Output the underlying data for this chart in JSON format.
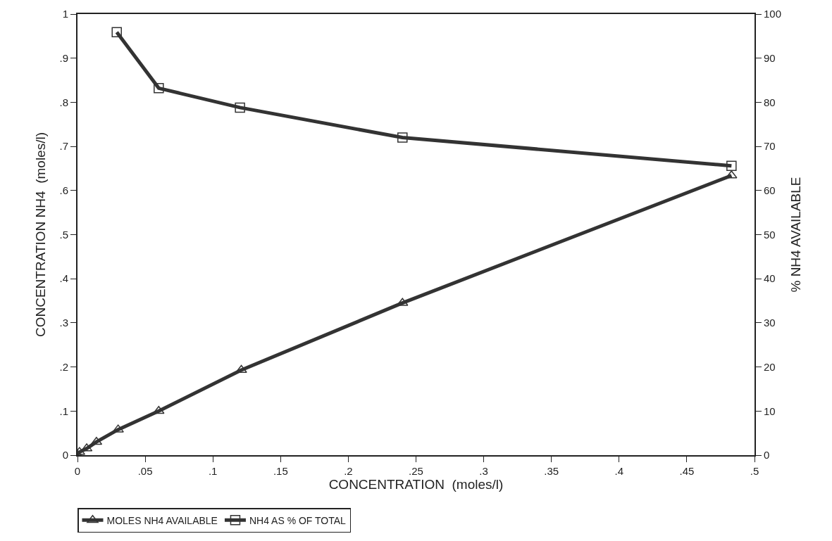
{
  "chart_data": {
    "type": "line",
    "xlabel": "CONCENTRATION  (moles/l)",
    "ylabel": "CONCENTRATION NH4  (moles/l)",
    "y2label": "% NH4 AVAILABLE",
    "xlim": [
      0,
      0.5
    ],
    "xticks": [
      0,
      {
        "value": 0.05,
        "label": ".05"
      },
      {
        "value": 0.1,
        "label": ".1"
      },
      {
        "value": 0.15,
        "label": ".15"
      },
      {
        "value": 0.2,
        "label": ".2"
      },
      {
        "value": 0.25,
        "label": ".25"
      },
      {
        "value": 0.3,
        "label": ".3"
      },
      {
        "value": 0.35,
        "label": ".35"
      },
      {
        "value": 0.4,
        "label": ".4"
      },
      {
        "value": 0.45,
        "label": ".45"
      },
      {
        "value": 0.5,
        "label": ".5"
      }
    ],
    "ylim": [
      0,
      1
    ],
    "yticks": [
      0,
      {
        "value": 0.1,
        "label": ".1"
      },
      {
        "value": 0.2,
        "label": ".2"
      },
      {
        "value": 0.3,
        "label": ".3"
      },
      {
        "value": 0.4,
        "label": ".4"
      },
      {
        "value": 0.5,
        "label": ".5"
      },
      {
        "value": 0.6,
        "label": ".6"
      },
      {
        "value": 0.7,
        "label": ".7"
      },
      {
        "value": 0.8,
        "label": ".8"
      },
      {
        "value": 0.9,
        "label": ".9"
      },
      1
    ],
    "y2lim": [
      0,
      100
    ],
    "y2ticks": [
      0,
      10,
      20,
      30,
      40,
      50,
      60,
      70,
      80,
      90,
      100
    ],
    "legend": "bottom",
    "line_style": "solid",
    "series": [
      {
        "name": "MOLES NH4 AVAILABLE",
        "color": "#333333",
        "marker": "triangle",
        "x": [
          0,
          0.0015,
          0.0068,
          0.014,
          0.03,
          0.06,
          0.121,
          0.24,
          0.483
        ],
        "values": [
          0,
          0.007,
          0.015,
          0.03,
          0.058,
          0.1,
          0.193,
          0.345,
          0.634
        ]
      },
      {
        "name": "NH4 AS % OF TOTAL",
        "color": "#333333",
        "marker": "square",
        "axis": "y2",
        "x": [
          0.029,
          0.06,
          0.12,
          0.24,
          0.483
        ],
        "values": [
          95.9,
          83.2,
          78.8,
          72,
          65.6
        ]
      }
    ]
  }
}
